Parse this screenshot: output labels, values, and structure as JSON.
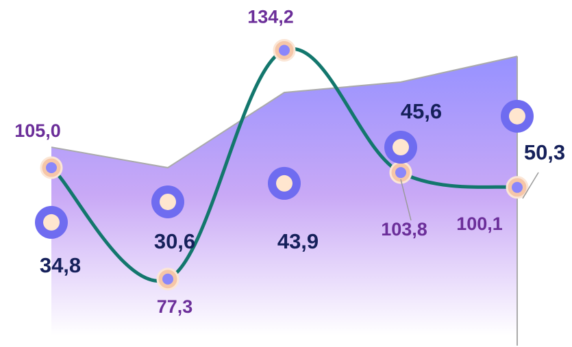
{
  "chart_data": {
    "type": "combo",
    "x": [
      1,
      2,
      3,
      4,
      5
    ],
    "xlim": [
      1,
      5
    ],
    "ylim": [
      63.3,
      141.6
    ],
    "series": [
      {
        "type": "area",
        "color": "#9a94ff",
        "values": [
          110.1,
          105.0,
          123.7,
          126.3,
          132.7
        ]
      },
      {
        "type": "line",
        "color": "#13776d",
        "values": [
          105.0,
          77.3,
          134.2,
          103.8,
          100.1
        ],
        "value_labels": [
          "105,0",
          "77,3",
          "134,2",
          "103,8",
          "100,1"
        ]
      },
      {
        "type": "bubble",
        "color": "#6f6cf0",
        "values": [
          91.4,
          96.5,
          101.1,
          110.1,
          117.8
        ],
        "sizes": [
          34.8,
          30.6,
          43.9,
          45.6,
          50.3
        ],
        "value_labels": [
          "34,8",
          "30,6",
          "43,9",
          "45,6",
          "50,3"
        ]
      }
    ]
  }
}
